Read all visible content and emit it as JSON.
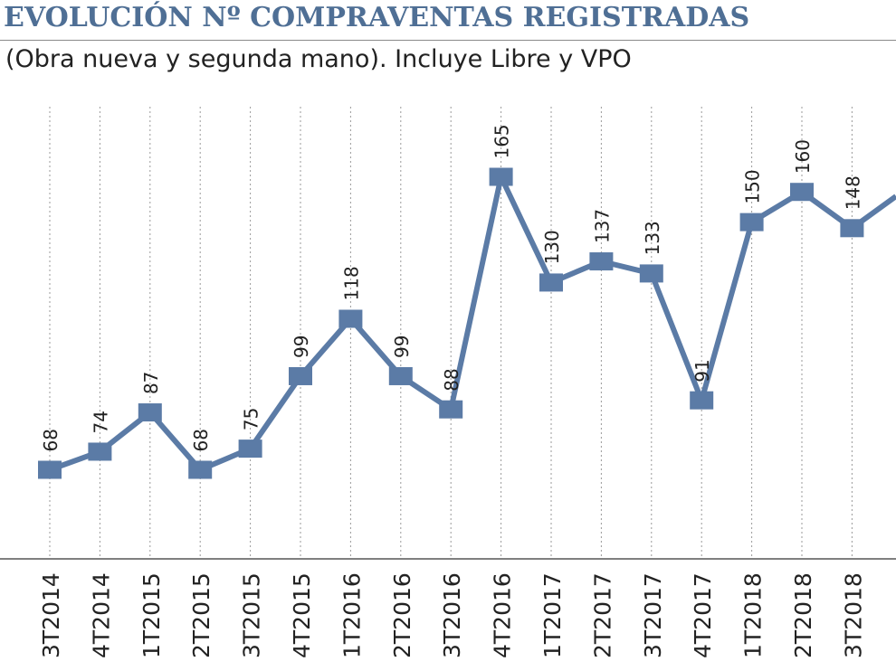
{
  "header": {
    "title": "EVOLUCIÓN Nº COMPRAVENTAS REGISTRADAS",
    "subtitle": "(Obra nueva y segunda mano). Incluye Libre y VPO"
  },
  "colors": {
    "title": "#4f6f95",
    "series": "#5b7ba6",
    "gridline": "#9a9a9a",
    "text": "#222222"
  },
  "chart_data": {
    "type": "line",
    "title": "EVOLUCIÓN Nº COMPRAVENTAS REGISTRADAS",
    "subtitle": "(Obra nueva y segunda mano). Incluye Libre y VPO",
    "xlabel": "",
    "ylabel": "",
    "grid": "vertical-dotted",
    "legend": "none",
    "categories": [
      "3T2014",
      "4T2014",
      "1T2015",
      "2T2015",
      "3T2015",
      "4T2015",
      "1T2016",
      "2T2016",
      "3T2016",
      "4T2016",
      "1T2017",
      "2T2017",
      "3T2017",
      "4T2017",
      "1T2018",
      "2T2018",
      "3T2018"
    ],
    "series": [
      {
        "values": [
          68,
          74,
          87,
          68,
          75,
          99,
          118,
          99,
          88,
          165,
          130,
          137,
          133,
          91,
          150,
          160,
          148
        ],
        "labels": [
          "68",
          "74",
          "87",
          "68",
          "75",
          "99",
          "118",
          "99",
          "88",
          "165",
          "130",
          "137",
          "133",
          "91",
          "150",
          "160",
          "148"
        ]
      }
    ]
  }
}
